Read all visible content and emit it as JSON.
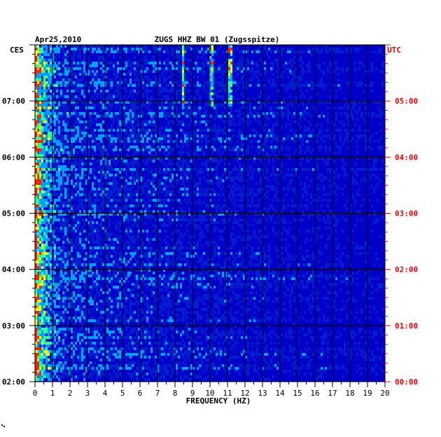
{
  "chart_data": {
    "type": "heatmap",
    "date_label": "Apr25,2010",
    "title": "ZUGS HHZ BW 01 (Zugsspitze)",
    "xlabel": "FREQUENCY (HZ)",
    "x_range": [
      0,
      20
    ],
    "x_ticks": [
      "0",
      "1",
      "2",
      "3",
      "4",
      "5",
      "6",
      "7",
      "8",
      "9",
      "10",
      "11",
      "12",
      "13",
      "14",
      "15",
      "16",
      "17",
      "18",
      "19",
      "20"
    ],
    "left_axis_label": "CES",
    "right_axis_label": "UTC",
    "time_range_local": [
      "02:00",
      "08:00"
    ],
    "left_ticks": [
      "02:00",
      "03:00",
      "04:00",
      "05:00",
      "06:00",
      "07:00"
    ],
    "right_ticks": [
      "00:00",
      "01:00",
      "02:00",
      "03:00",
      "04:00",
      "05:00"
    ],
    "colors": {
      "background": "#0000c8",
      "low": "#0020d0",
      "mid": "#00a0ff",
      "high": "#30ff90",
      "peak": "#ffff00",
      "max": "#ff2000",
      "grid": "#000000",
      "utc_text": "#ff0000",
      "text": "#000000"
    },
    "notes": "Spectrogram amplitude highest below 1 Hz; narrow lines near 8.5, 10.1, 11.2 Hz in upper section"
  }
}
